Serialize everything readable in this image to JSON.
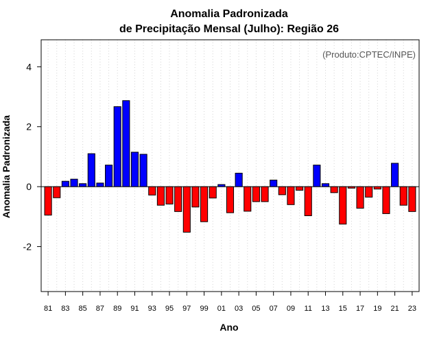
{
  "chart_data": {
    "type": "bar",
    "title": "Anomalia Padronizada",
    "subtitle": "de Precipitação Mensal (Julho): Região 26",
    "xlabel": "Ano",
    "ylabel": "Anomalia Padronizada",
    "credit": "(Produto:CPTEC/INPE)",
    "ylim": [
      -3.5,
      4.9
    ],
    "yticks": [
      -2,
      0,
      2,
      4
    ],
    "ytick_labels": [
      "-2",
      "0",
      "2",
      "4"
    ],
    "grid": "vertical-dotted",
    "colors": {
      "positive": "#0000ff",
      "negative": "#ff0000",
      "grid": "#d3d3d3"
    },
    "categories": [
      "81",
      "82",
      "83",
      "84",
      "85",
      "86",
      "87",
      "88",
      "89",
      "90",
      "91",
      "92",
      "93",
      "94",
      "95",
      "96",
      "97",
      "98",
      "99",
      "00",
      "01",
      "02",
      "03",
      "04",
      "05",
      "06",
      "07",
      "08",
      "09",
      "10",
      "11",
      "12",
      "13",
      "14",
      "15",
      "16",
      "17",
      "18",
      "19",
      "20",
      "21",
      "22",
      "23"
    ],
    "xtick_labels": [
      "81",
      "83",
      "85",
      "87",
      "89",
      "91",
      "93",
      "95",
      "97",
      "99",
      "01",
      "03",
      "05",
      "07",
      "09",
      "11",
      "13",
      "15",
      "17",
      "19",
      "21",
      "23"
    ],
    "values": [
      -0.95,
      -0.37,
      0.18,
      0.25,
      0.1,
      1.1,
      0.12,
      0.72,
      2.67,
      2.87,
      1.15,
      1.08,
      -0.28,
      -0.62,
      -0.58,
      -0.83,
      -1.52,
      -0.68,
      -1.17,
      -0.38,
      0.07,
      -0.87,
      0.45,
      -0.82,
      -0.5,
      -0.5,
      0.22,
      -0.27,
      -0.6,
      -0.12,
      -0.97,
      0.72,
      0.1,
      -0.2,
      -1.25,
      -0.05,
      -0.72,
      -0.35,
      -0.08,
      -0.9,
      0.78,
      -0.62,
      -0.83
    ]
  }
}
